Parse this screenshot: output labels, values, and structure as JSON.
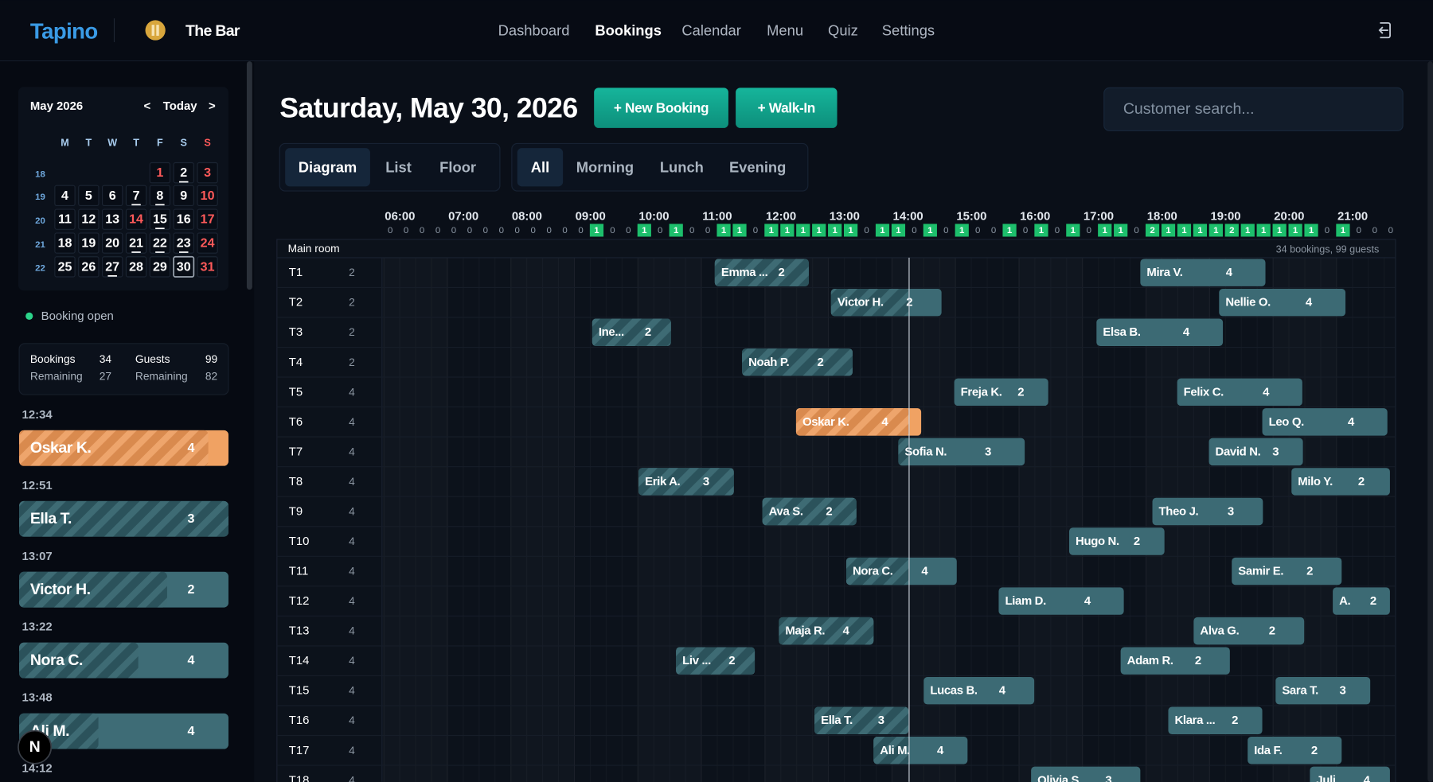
{
  "header": {
    "brand": "Tapino",
    "venue": "The Bar",
    "nav": [
      "Dashboard",
      "Bookings",
      "Calendar",
      "Menu",
      "Quiz",
      "Settings"
    ],
    "active_nav": 1
  },
  "sidebar": {
    "calendar": {
      "month": "May 2026",
      "prev": "<",
      "today": "Today",
      "next": ">",
      "weekdays": [
        "M",
        "T",
        "W",
        "T",
        "F",
        "S",
        "S"
      ],
      "weeks": [
        {
          "week": 18,
          "days": [
            null,
            null,
            null,
            null,
            1,
            2,
            3
          ]
        },
        {
          "week": 19,
          "days": [
            4,
            5,
            6,
            7,
            8,
            9,
            10
          ]
        },
        {
          "week": 20,
          "days": [
            11,
            12,
            13,
            14,
            15,
            16,
            17
          ]
        },
        {
          "week": 21,
          "days": [
            18,
            19,
            20,
            21,
            22,
            23,
            24
          ]
        },
        {
          "week": 22,
          "days": [
            25,
            26,
            27,
            28,
            29,
            30,
            31
          ]
        }
      ],
      "selected_day": 30,
      "holidays": [
        1,
        14
      ],
      "underlined_days": [
        2,
        7,
        8,
        15,
        21,
        22,
        23,
        27
      ]
    },
    "status": "Booking open",
    "stats": {
      "bookings_label": "Bookings",
      "bookings": 34,
      "bookings_remaining_label": "Remaining",
      "bookings_remaining": 27,
      "guests_label": "Guests",
      "guests": 99,
      "guests_remaining_label": "Remaining",
      "guests_remaining": 82
    },
    "upcoming": [
      {
        "time": "12:34",
        "name": "Oskar K.",
        "guests": 4,
        "highlight": true
      },
      {
        "time": "12:51",
        "name": "Ella T.",
        "guests": 3
      },
      {
        "time": "13:07",
        "name": "Victor H.",
        "guests": 2
      },
      {
        "time": "13:22",
        "name": "Nora C.",
        "guests": 4
      },
      {
        "time": "13:48",
        "name": "Ali M.",
        "guests": 4
      },
      {
        "time": "14:12"
      }
    ]
  },
  "main": {
    "date": "Saturday, May 30, 2026",
    "buttons": [
      "+ New Booking",
      "+ Walk-In"
    ],
    "search_placeholder": "Customer search...",
    "view_tabs": [
      "Diagram",
      "List",
      "Floor"
    ],
    "active_view": 0,
    "filters": [
      "All",
      "Morning",
      "Lunch",
      "Evening"
    ],
    "active_filter": 0,
    "timeline": {
      "xlim": [
        6,
        22
      ],
      "hours": [
        {
          "value": 6,
          "label": "06:00"
        },
        {
          "value": 7,
          "label": "07:00"
        },
        {
          "value": 8,
          "label": "08:00"
        },
        {
          "value": 9,
          "label": "09:00"
        },
        {
          "value": 10,
          "label": "10:00"
        },
        {
          "value": 11,
          "label": "11:00"
        },
        {
          "value": 12,
          "label": "12:00"
        },
        {
          "value": 13,
          "label": "13:00"
        },
        {
          "value": 14,
          "label": "14:00"
        },
        {
          "value": 15,
          "label": "15:00"
        },
        {
          "value": 16,
          "label": "16:00"
        },
        {
          "value": 17,
          "label": "17:00"
        },
        {
          "value": 18,
          "label": "18:00"
        },
        {
          "value": 19,
          "label": "19:00"
        },
        {
          "value": 20,
          "label": "20:00"
        },
        {
          "value": 21,
          "label": "21:00"
        }
      ],
      "occupancy": [
        0,
        0,
        0,
        0,
        0,
        0,
        0,
        0,
        0,
        0,
        0,
        0,
        0,
        1,
        0,
        0,
        1,
        0,
        1,
        0,
        0,
        1,
        1,
        0,
        1,
        1,
        1,
        1,
        1,
        1,
        0,
        1,
        1,
        0,
        1,
        0,
        1,
        0,
        0,
        1,
        0,
        1,
        0,
        1,
        0,
        1,
        1,
        0,
        2,
        1,
        1,
        1,
        1,
        2,
        1,
        1,
        1,
        1,
        1,
        0,
        1,
        0,
        0,
        0
      ],
      "now": 14.27,
      "room": "Main room",
      "room_summary": "34 bookings, 99 guests",
      "tables": [
        {
          "name": "T1",
          "capacity": 2,
          "bookings": [
            {
              "name": "Emma ...",
              "guests": 2,
              "start": 11.21,
              "end": 12.69
            },
            {
              "name": "Mira V.",
              "guests": 4,
              "start": 17.91,
              "end": 19.88
            }
          ]
        },
        {
          "name": "T2",
          "capacity": 2,
          "bookings": [
            {
              "name": "Victor H.",
              "guests": 2,
              "start": 13.04,
              "end": 14.78
            },
            {
              "name": "Nellie O.",
              "guests": 4,
              "start": 19.15,
              "end": 21.14
            }
          ]
        },
        {
          "name": "T3",
          "capacity": 2,
          "bookings": [
            {
              "name": "Ine...",
              "guests": 2,
              "start": 9.28,
              "end": 10.52
            },
            {
              "name": "Elsa B.",
              "guests": 4,
              "start": 17.22,
              "end": 19.21
            }
          ]
        },
        {
          "name": "T4",
          "capacity": 2,
          "bookings": [
            {
              "name": "Noah P.",
              "guests": 2,
              "start": 11.64,
              "end": 13.38
            }
          ]
        },
        {
          "name": "T5",
          "capacity": 4,
          "bookings": [
            {
              "name": "Freja K.",
              "guests": 2,
              "start": 14.98,
              "end": 16.46
            },
            {
              "name": "Felix C.",
              "guests": 4,
              "start": 18.49,
              "end": 20.46
            }
          ]
        },
        {
          "name": "T6",
          "capacity": 4,
          "bookings": [
            {
              "name": "Oskar K.",
              "guests": 4,
              "start": 12.49,
              "end": 14.46,
              "highlight": true
            },
            {
              "name": "Leo Q.",
              "guests": 4,
              "start": 19.83,
              "end": 21.8
            }
          ]
        },
        {
          "name": "T7",
          "capacity": 4,
          "bookings": [
            {
              "name": "Sofia N.",
              "guests": 3,
              "start": 14.1,
              "end": 16.09
            },
            {
              "name": "David N.",
              "guests": 3,
              "start": 18.99,
              "end": 20.47
            }
          ]
        },
        {
          "name": "T8",
          "capacity": 4,
          "bookings": [
            {
              "name": "Erik A.",
              "guests": 3,
              "start": 10.01,
              "end": 11.51
            },
            {
              "name": "Milo Y.",
              "guests": 2,
              "start": 20.29,
              "end": 21.84
            }
          ]
        },
        {
          "name": "T9",
          "capacity": 4,
          "bookings": [
            {
              "name": "Ava S.",
              "guests": 2,
              "start": 11.96,
              "end": 13.44
            },
            {
              "name": "Theo J.",
              "guests": 3,
              "start": 18.1,
              "end": 19.84
            }
          ]
        },
        {
          "name": "T10",
          "capacity": 4,
          "bookings": [
            {
              "name": "Hugo N.",
              "guests": 2,
              "start": 16.79,
              "end": 18.29
            }
          ]
        },
        {
          "name": "T11",
          "capacity": 4,
          "bookings": [
            {
              "name": "Nora C.",
              "guests": 4,
              "start": 13.28,
              "end": 15.02
            },
            {
              "name": "Samir E.",
              "guests": 2,
              "start": 19.35,
              "end": 21.08
            }
          ]
        },
        {
          "name": "T12",
          "capacity": 4,
          "bookings": [
            {
              "name": "Liam D.",
              "guests": 4,
              "start": 15.68,
              "end": 17.65
            },
            {
              "name": "A.",
              "guests": 2,
              "start": 20.94,
              "end": 21.84
            }
          ]
        },
        {
          "name": "T13",
          "capacity": 4,
          "bookings": [
            {
              "name": "Maja R.",
              "guests": 4,
              "start": 12.22,
              "end": 13.71
            },
            {
              "name": "Alva G.",
              "guests": 2,
              "start": 18.75,
              "end": 20.49
            }
          ]
        },
        {
          "name": "T14",
          "capacity": 4,
          "bookings": [
            {
              "name": "Liv ...",
              "guests": 2,
              "start": 10.6,
              "end": 11.84
            },
            {
              "name": "Adam R.",
              "guests": 2,
              "start": 17.6,
              "end": 19.32
            }
          ]
        },
        {
          "name": "T15",
          "capacity": 4,
          "bookings": [
            {
              "name": "Lucas B.",
              "guests": 4,
              "start": 14.5,
              "end": 16.24
            },
            {
              "name": "Sara T.",
              "guests": 3,
              "start": 20.04,
              "end": 21.53
            }
          ]
        },
        {
          "name": "T16",
          "capacity": 4,
          "bookings": [
            {
              "name": "Ella T.",
              "guests": 3,
              "start": 12.78,
              "end": 14.26
            },
            {
              "name": "Klara ...",
              "guests": 2,
              "start": 18.35,
              "end": 19.83
            }
          ]
        },
        {
          "name": "T17",
          "capacity": 4,
          "bookings": [
            {
              "name": "Ali M.",
              "guests": 4,
              "start": 13.71,
              "end": 15.19
            },
            {
              "name": "Ida F.",
              "guests": 2,
              "start": 19.6,
              "end": 21.08
            }
          ]
        },
        {
          "name": "T18",
          "capacity": 4,
          "bookings": [
            {
              "name": "Olivia S.",
              "guests": 3,
              "start": 16.19,
              "end": 17.91
            },
            {
              "name": "Juli...",
              "guests": 4,
              "start": 20.58,
              "end": 21.84
            }
          ]
        }
      ]
    }
  },
  "dev_badge": "N"
}
